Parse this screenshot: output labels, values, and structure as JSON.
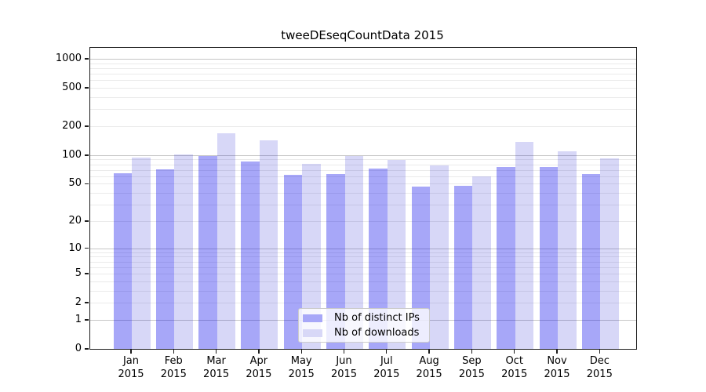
{
  "title": "tweeDEseqCountData 2015",
  "chart_data": {
    "type": "bar",
    "title": "tweeDEseqCountData 2015",
    "categories": [
      "Jan 2015",
      "Feb 2015",
      "Mar 2015",
      "Apr 2015",
      "May 2015",
      "Jun 2015",
      "Jul 2015",
      "Aug 2015",
      "Sep 2015",
      "Oct 2015",
      "Nov 2015",
      "Dec 2015"
    ],
    "series": [
      {
        "name": "Nb of distinct IPs",
        "color": "#a7a7f8",
        "fill_rgba": "rgba(4,4,235,0.35)",
        "values": [
          65,
          71,
          97,
          85,
          62,
          63,
          73,
          47,
          48,
          75,
          75,
          63
        ]
      },
      {
        "name": "Nb of downloads",
        "color": "#d8d8f7",
        "fill_rgba": "rgba(5,5,205,0.16)",
        "values": [
          94,
          101,
          170,
          142,
          81,
          97,
          89,
          78,
          60,
          137,
          110,
          92
        ]
      }
    ],
    "y_ticks": [
      0,
      1,
      2,
      5,
      10,
      20,
      50,
      100,
      200,
      500,
      1000
    ],
    "y_scale": "log1p",
    "ylim": [
      0,
      1000
    ],
    "grid": "both",
    "grid_major_color": "#c6c6c6",
    "grid_minor_color": "#eaeaea",
    "legend_position": "lower-center-inside"
  }
}
